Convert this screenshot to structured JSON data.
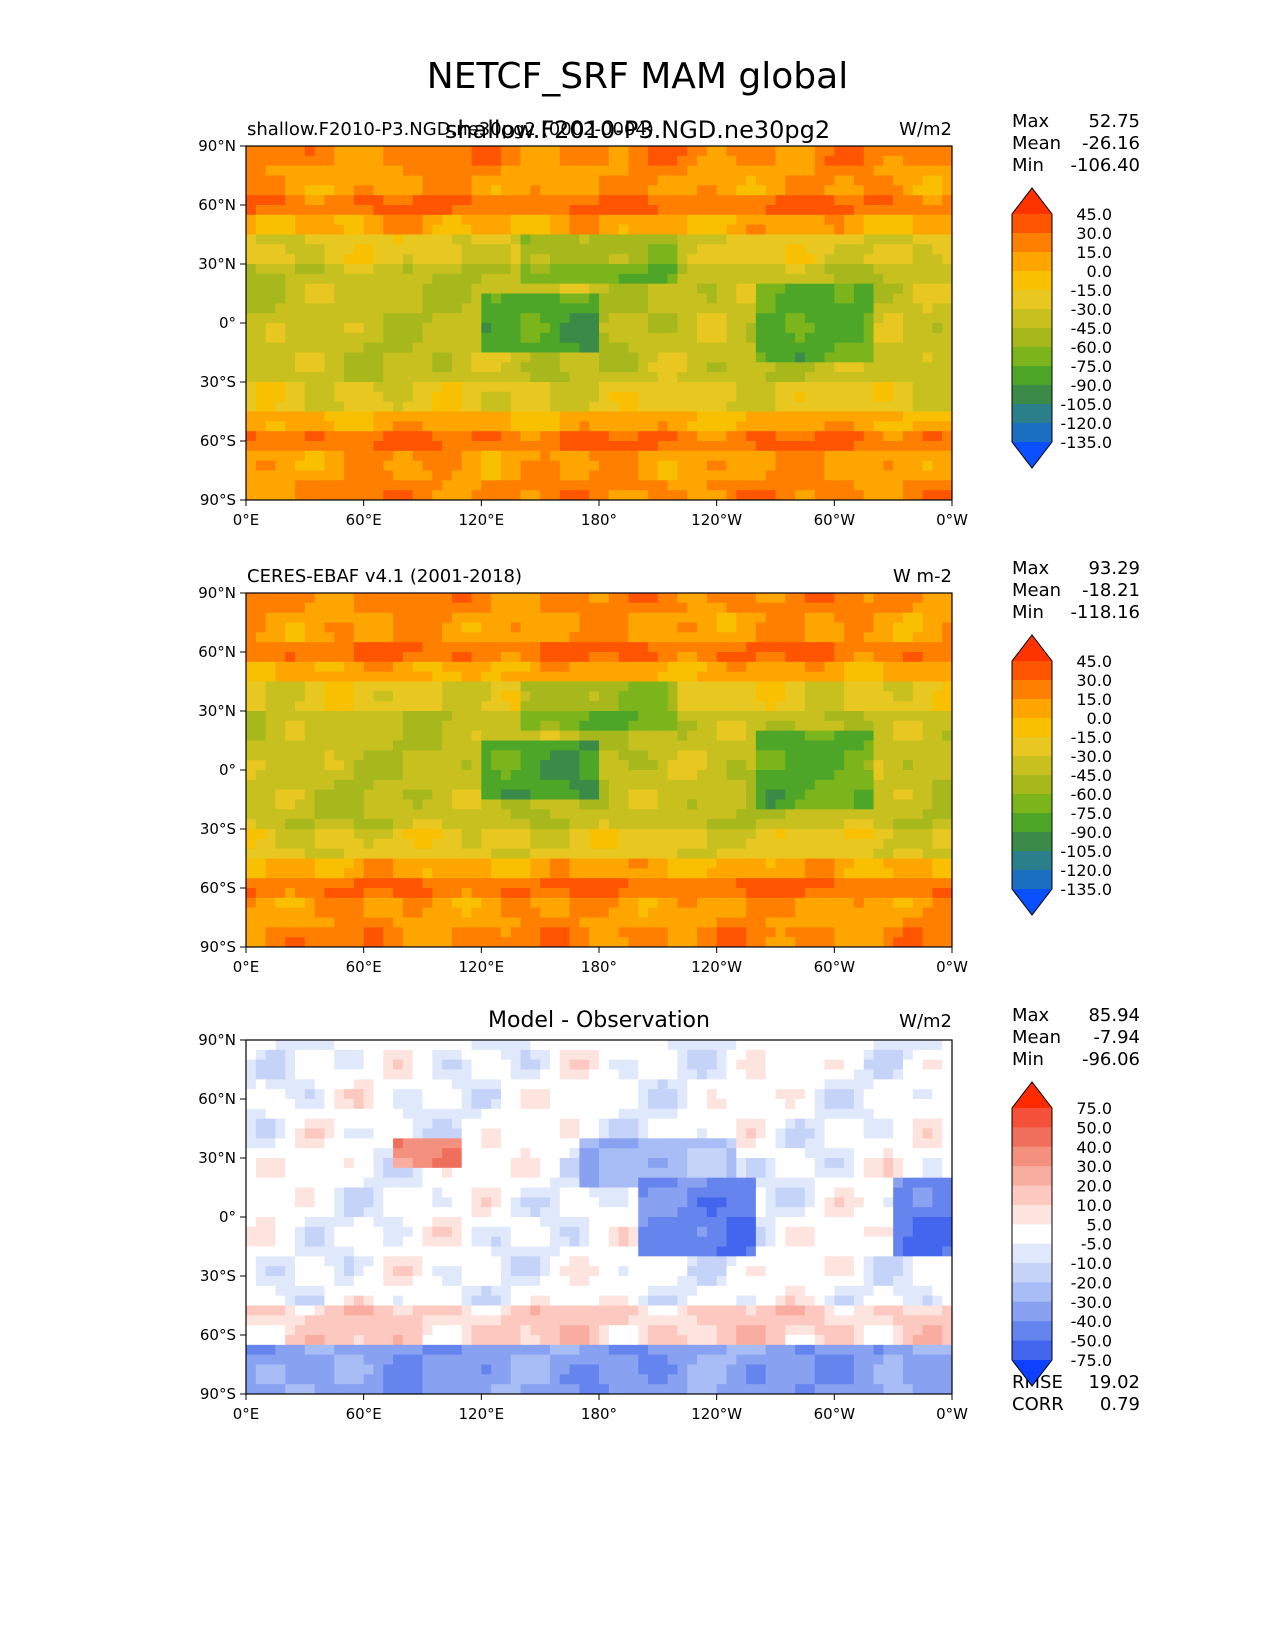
{
  "figure": {
    "title": "NETCF_SRF MAM global",
    "overlap_text": "shallow.F2010-P3.NGD.ne30pg2"
  },
  "panels": [
    {
      "left_label": "shallow.F2010-P3.NGD.ne30pg2 (0002-0004)",
      "center_title": "",
      "units": "W/m2",
      "stats": [
        {
          "label": "Max",
          "value": "52.75"
        },
        {
          "label": "Mean",
          "value": "-26.16"
        },
        {
          "label": "Min",
          "value": "-106.40"
        }
      ],
      "colorbar": {
        "levels": [
          "45.0",
          "30.0",
          "15.0",
          "0.0",
          "-15.0",
          "-30.0",
          "-45.0",
          "-60.0",
          "-75.0",
          "-90.0",
          "-105.0",
          "-120.0",
          "-135.0"
        ],
        "colors": [
          "#ff3300",
          "#ff5500",
          "#ff8000",
          "#ffa500",
          "#f8c000",
          "#e8c820",
          "#c8c01e",
          "#a6b81c",
          "#7cb41c",
          "#4ea628",
          "#3a8a48",
          "#2a7f8a",
          "#1a6fc0",
          "#0a50ff"
        ]
      }
    },
    {
      "left_label": "CERES-EBAF v4.1 (2001-2018)",
      "center_title": "",
      "units": "W m-2",
      "stats": [
        {
          "label": "Max",
          "value": "93.29"
        },
        {
          "label": "Mean",
          "value": "-18.21"
        },
        {
          "label": "Min",
          "value": "-118.16"
        }
      ],
      "colorbar": {
        "levels": [
          "45.0",
          "30.0",
          "15.0",
          "0.0",
          "-15.0",
          "-30.0",
          "-45.0",
          "-60.0",
          "-75.0",
          "-90.0",
          "-105.0",
          "-120.0",
          "-135.0"
        ],
        "colors": [
          "#ff3300",
          "#ff5500",
          "#ff8000",
          "#ffa500",
          "#f8c000",
          "#e8c820",
          "#c8c01e",
          "#a6b81c",
          "#7cb41c",
          "#4ea628",
          "#3a8a48",
          "#2a7f8a",
          "#1a6fc0",
          "#0a50ff"
        ]
      }
    },
    {
      "left_label": "",
      "center_title": "Model - Observation",
      "units": "W/m2",
      "stats": [
        {
          "label": "Max",
          "value": "85.94"
        },
        {
          "label": "Mean",
          "value": "-7.94"
        },
        {
          "label": "Min",
          "value": "-96.06"
        }
      ],
      "bottom_stats": [
        {
          "label": "RMSE",
          "value": "19.02"
        },
        {
          "label": "CORR",
          "value": "0.79"
        }
      ],
      "colorbar": {
        "levels": [
          "75.0",
          "50.0",
          "40.0",
          "30.0",
          "20.0",
          "10.0",
          "5.0",
          "-5.0",
          "-10.0",
          "-20.0",
          "-30.0",
          "-40.0",
          "-50.0",
          "-75.0"
        ],
        "colors": [
          "#ff2a00",
          "#f4503a",
          "#f06e5c",
          "#f4907e",
          "#f8ada0",
          "#fcc8bf",
          "#fde4df",
          "#ffffff",
          "#e0e8fb",
          "#c5d3f8",
          "#a8bcf5",
          "#88a2f1",
          "#6684ee",
          "#4466ee",
          "#1040ff"
        ]
      }
    }
  ],
  "axes": {
    "x_ticks": [
      "0°E",
      "60°E",
      "120°E",
      "180°",
      "120°W",
      "60°W",
      "0°W"
    ],
    "y_ticks": [
      "90°N",
      "60°N",
      "30°N",
      "0°",
      "30°S",
      "60°S",
      "90°S"
    ]
  }
}
